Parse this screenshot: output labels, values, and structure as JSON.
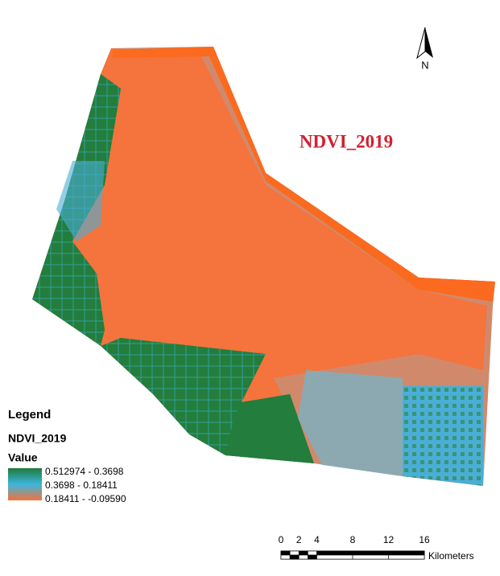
{
  "map": {
    "title": "NDVI_2019",
    "north_label": "N",
    "legend": {
      "heading": "Legend",
      "layer": "NDVI_2019",
      "field": "Value",
      "classes": [
        {
          "label": "0.512974 - 0.3698",
          "color": "#1f7a3a"
        },
        {
          "label": "0.3698 - 0.18411",
          "color": "#3bb6de"
        },
        {
          "label": "0.18411 - -0.09590",
          "color": "#f5723a"
        }
      ]
    },
    "scale_bar": {
      "ticks": [
        0,
        2,
        4,
        8,
        12,
        16
      ],
      "unit": "Kilometers"
    }
  }
}
